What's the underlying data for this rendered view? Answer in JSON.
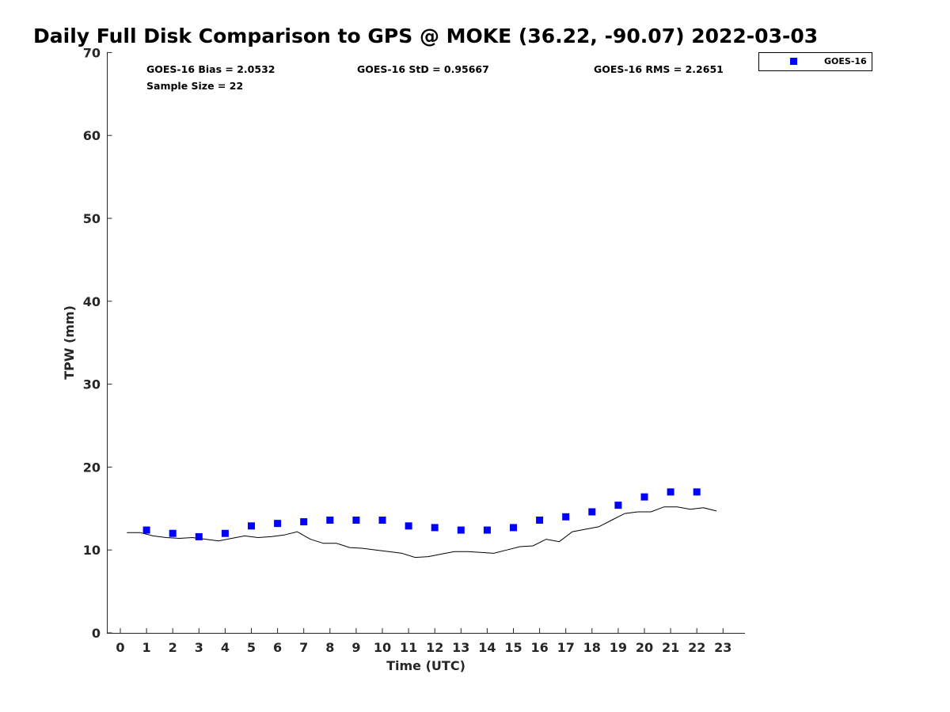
{
  "colors": {
    "goes": "#0000ff",
    "gps_line": "#000000",
    "axis": "#262626"
  },
  "chart_data": {
    "type": "scatter",
    "title": "Daily Full Disk Comparison to GPS @ MOKE (36.22, -90.07) 2022-03-03",
    "xlabel": "Time (UTC)",
    "ylabel": "TPW (mm)",
    "xlim": [
      -0.5,
      23.75
    ],
    "ylim": [
      0,
      70
    ],
    "xticks": [
      "0",
      "1",
      "2",
      "3",
      "4",
      "5",
      "6",
      "7",
      "8",
      "9",
      "10",
      "11",
      "12",
      "13",
      "14",
      "15",
      "16",
      "17",
      "18",
      "19",
      "20",
      "21",
      "22",
      "23"
    ],
    "yticks": [
      "0",
      "10",
      "20",
      "30",
      "40",
      "50",
      "60",
      "70"
    ],
    "grid": false,
    "legend": {
      "position": "top-right",
      "entries": [
        "GOES-16"
      ]
    },
    "stats": {
      "bias": "GOES-16 Bias = 2.0532",
      "std": "GOES-16 StD = 0.95667",
      "rms": "GOES-16 RMS = 2.2651",
      "sample": "Sample Size = 22"
    },
    "series": [
      {
        "name": "GOES-16",
        "marker": "square",
        "x": [
          1,
          2,
          3,
          4,
          5,
          6,
          7,
          8,
          9,
          10,
          11,
          12,
          13,
          14,
          15,
          16,
          17,
          18,
          19,
          20,
          21,
          22
        ],
        "y": [
          12.4,
          12.0,
          11.6,
          12.0,
          12.9,
          13.2,
          13.4,
          13.6,
          13.6,
          13.6,
          12.9,
          12.7,
          12.4,
          12.4,
          12.7,
          13.6,
          14.0,
          14.6,
          15.4,
          16.4,
          17.0,
          17.0
        ]
      },
      {
        "marker": "line",
        "x": [
          0.25,
          0.75,
          1.25,
          1.75,
          2.25,
          2.75,
          3.25,
          3.75,
          4.25,
          4.75,
          5.25,
          5.75,
          6.25,
          6.75,
          7.25,
          7.75,
          8.25,
          8.75,
          9.25,
          9.75,
          10.25,
          10.75,
          11.25,
          11.75,
          12.25,
          12.75,
          13.25,
          13.75,
          14.25,
          14.75,
          15.25,
          15.75,
          16.25,
          16.75,
          17.25,
          17.75,
          18.25,
          18.75,
          19.25,
          19.75,
          20.25,
          20.75,
          21.25,
          21.75,
          22.25,
          22.75
        ],
        "y": [
          12.1,
          12.1,
          11.7,
          11.5,
          11.4,
          11.5,
          11.3,
          11.1,
          11.4,
          11.7,
          11.5,
          11.6,
          11.8,
          12.2,
          11.3,
          10.8,
          10.8,
          10.3,
          10.2,
          10.0,
          9.8,
          9.6,
          9.1,
          9.2,
          9.5,
          9.8,
          9.8,
          9.7,
          9.6,
          10.0,
          10.4,
          10.5,
          11.3,
          11.0,
          12.2,
          12.5,
          12.8,
          13.6,
          14.4,
          14.6,
          14.6,
          15.2,
          15.2,
          14.9,
          15.1,
          14.7
        ]
      }
    ]
  }
}
